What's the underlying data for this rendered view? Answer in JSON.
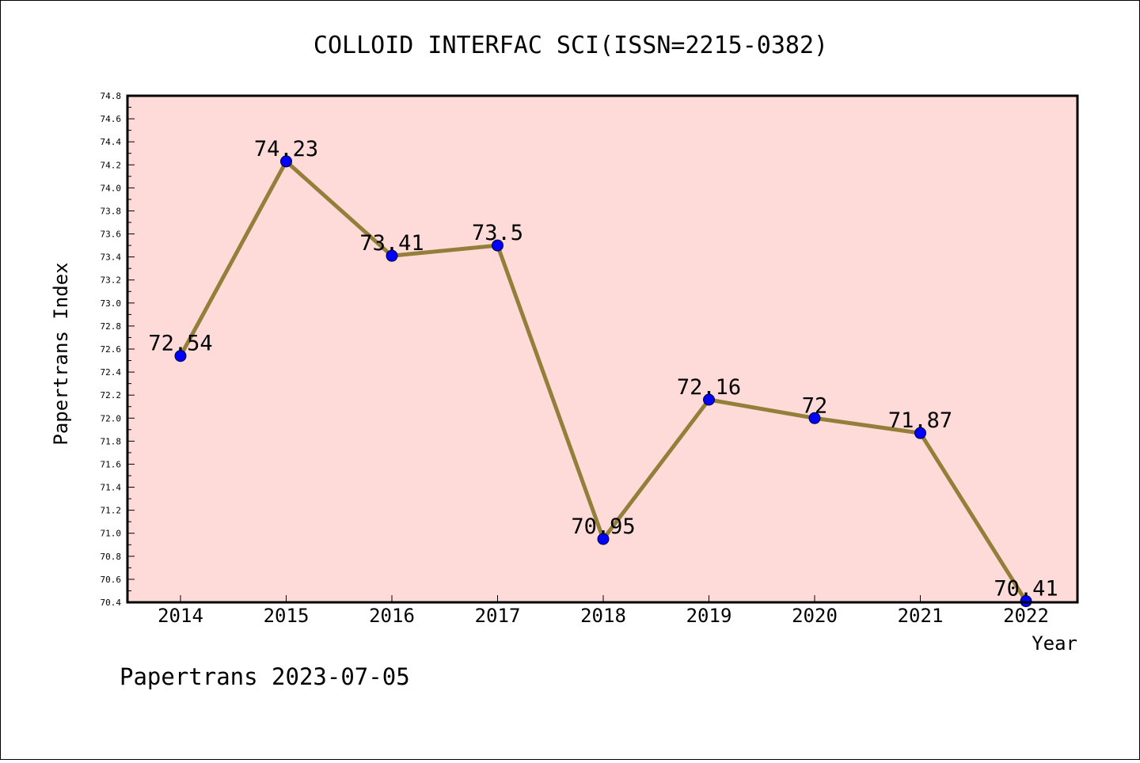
{
  "chart_data": {
    "type": "line",
    "title": "COLLOID INTERFAC SCI(ISSN=2215-0382)",
    "xlabel": "Year",
    "ylabel": "Papertrans Index",
    "categories": [
      "2014",
      "2015",
      "2016",
      "2017",
      "2018",
      "2019",
      "2020",
      "2021",
      "2022"
    ],
    "values": [
      72.54,
      74.23,
      73.41,
      73.5,
      70.95,
      72.16,
      72.0,
      71.87,
      70.41
    ],
    "data_labels": [
      "72.54",
      "74.23",
      "73.41",
      "73.5",
      "70.95",
      "72.16",
      "72",
      "71.87",
      "70.41"
    ],
    "ylim": [
      70.4,
      74.8
    ],
    "yticks": [
      "70.4",
      "70.6",
      "70.8",
      "71.0",
      "71.2",
      "71.4",
      "71.6",
      "71.8",
      "72.0",
      "72.2",
      "72.4",
      "72.6",
      "72.8",
      "73.0",
      "73.2",
      "73.4",
      "73.6",
      "73.8",
      "74.0",
      "74.2",
      "74.4",
      "74.6",
      "74.8"
    ],
    "grid": false,
    "colors": {
      "plot_background": "#fedbd8",
      "line": "#937f3a",
      "marker": "#0000ff"
    }
  },
  "footer": "Papertrans 2023-07-05"
}
